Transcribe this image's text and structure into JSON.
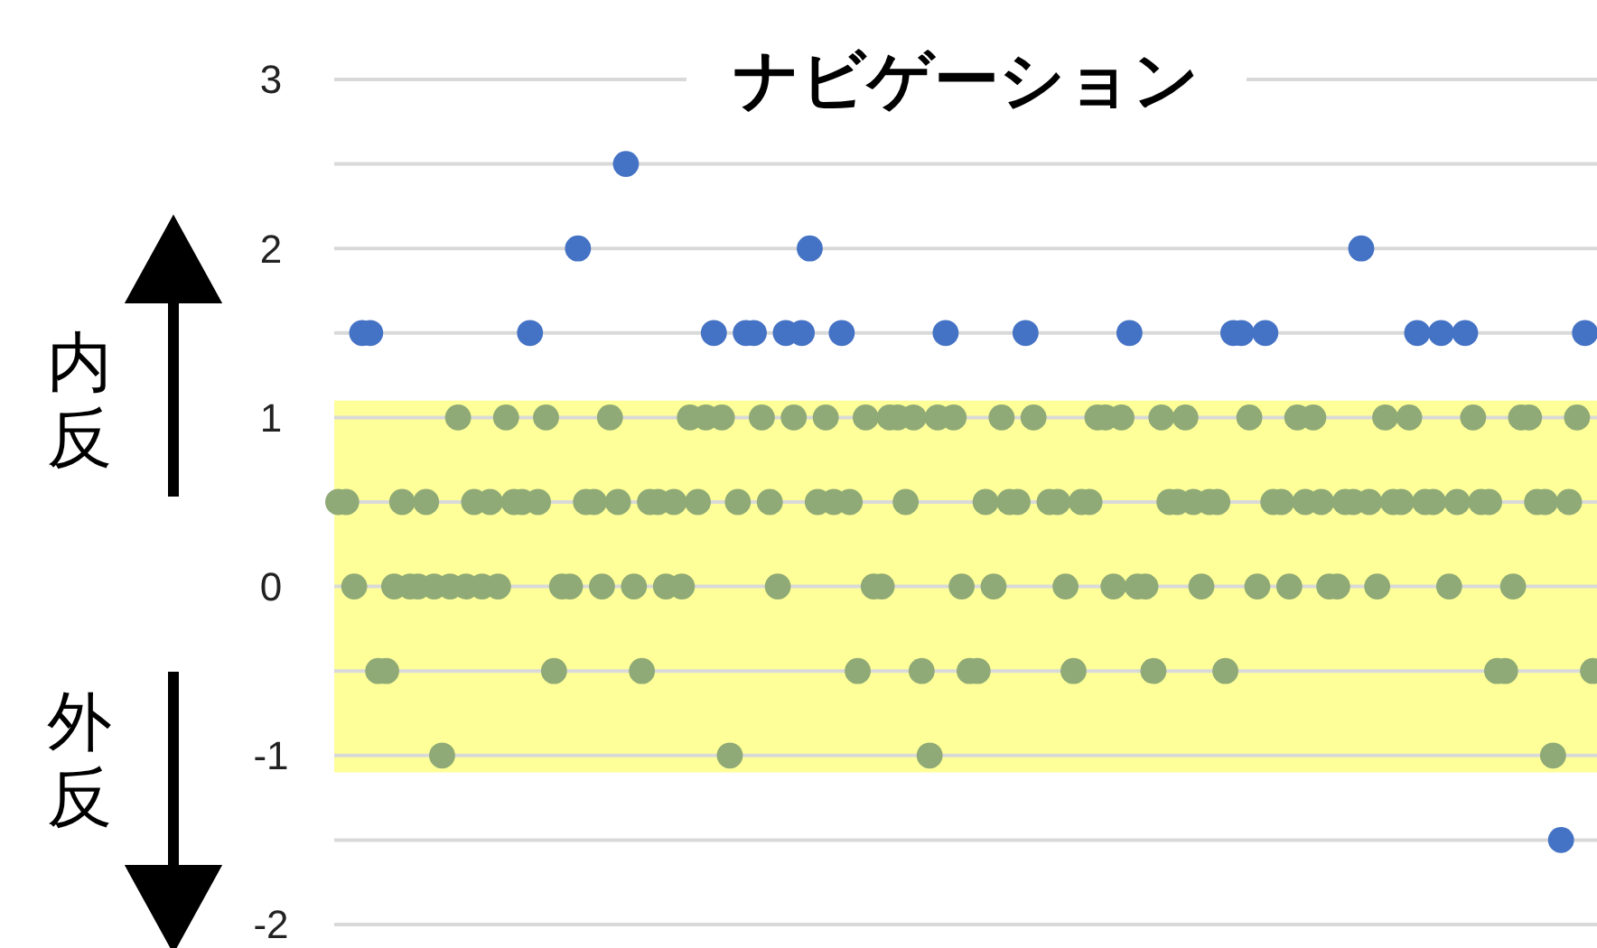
{
  "chart_data": {
    "type": "scatter",
    "title": "ナビゲーション",
    "annotations": [
      "内反",
      "外反"
    ],
    "categories": [
      null,
      null,
      null,
      null,
      null,
      null,
      null,
      null,
      null,
      null,
      null,
      null,
      null,
      null,
      null,
      null,
      null,
      null,
      null,
      null,
      null,
      null,
      null,
      null,
      null,
      null,
      null,
      null,
      null,
      null,
      null,
      null,
      null,
      null,
      null,
      null,
      null,
      null,
      null,
      null,
      null,
      null,
      null,
      null,
      null,
      null,
      null,
      null,
      null,
      null,
      null,
      null,
      null,
      null,
      null,
      null,
      null,
      null,
      null,
      null,
      null,
      null,
      null,
      null,
      null,
      null,
      null,
      null,
      null,
      null,
      null,
      null,
      null,
      null,
      null,
      null,
      null,
      null,
      null,
      null,
      null,
      null,
      null,
      null,
      null,
      null,
      null,
      null,
      null,
      null,
      null,
      null,
      null,
      null,
      null,
      null,
      null,
      null,
      null,
      null,
      null,
      null,
      null,
      null,
      null,
      null,
      null,
      null,
      null,
      null,
      null,
      null,
      null,
      null,
      null,
      null,
      null,
      null,
      null,
      null,
      null,
      null,
      null,
      null,
      null,
      null,
      null,
      null,
      null,
      null,
      null,
      null,
      null,
      null,
      null,
      null,
      null,
      null,
      null,
      null,
      null,
      null,
      null,
      null,
      null,
      null,
      null,
      null,
      null,
      null,
      null,
      null,
      null,
      null,
      null,
      null,
      null,
      null
    ],
    "ylim": [
      -2,
      3
    ],
    "yticks": [
      -2,
      {
        "value": -1.5,
        "label": null
      },
      -1,
      {
        "value": -0.5,
        "label": null
      },
      0,
      {
        "value": 0.5,
        "label": null
      },
      1,
      {
        "value": 1.5,
        "label": null
      },
      2,
      {
        "value": 2.5,
        "label": null
      },
      3
    ],
    "grid": "y",
    "marker": "circle",
    "bands": [
      {
        "axis": "y",
        "from": -1.1,
        "to": 1.1,
        "color": "#ffff99"
      }
    ],
    "series": [
      {
        "color": "#4472c4",
        "values": [
          null,
          null,
          null,
          1.5,
          1.5,
          null,
          null,
          null,
          null,
          null,
          null,
          null,
          null,
          null,
          null,
          null,
          null,
          null,
          null,
          null,
          null,
          null,
          null,
          null,
          1.5,
          null,
          null,
          null,
          null,
          null,
          2,
          null,
          null,
          null,
          null,
          null,
          2.5,
          null,
          null,
          null,
          null,
          null,
          null,
          null,
          null,
          null,
          null,
          1.5,
          null,
          null,
          null,
          1.5,
          1.5,
          null,
          null,
          null,
          1.5,
          null,
          1.5,
          2,
          null,
          null,
          null,
          1.5,
          null,
          null,
          null,
          null,
          null,
          null,
          null,
          null,
          null,
          null,
          null,
          null,
          1.5,
          null,
          null,
          null,
          null,
          null,
          null,
          null,
          null,
          null,
          1.5,
          null,
          null,
          null,
          null,
          null,
          null,
          null,
          null,
          null,
          null,
          null,
          null,
          1.5,
          null,
          null,
          null,
          null,
          null,
          null,
          null,
          null,
          null,
          null,
          null,
          null,
          1.5,
          1.5,
          null,
          null,
          1.5,
          null,
          null,
          null,
          null,
          null,
          null,
          null,
          null,
          null,
          null,
          null,
          2,
          null,
          null,
          null,
          null,
          null,
          null,
          1.5,
          null,
          null,
          1.5,
          null,
          null,
          1.5,
          null,
          null,
          null,
          null,
          null,
          null,
          null,
          null,
          null,
          null,
          null,
          -1.5,
          null,
          null,
          1.5,
          null
        ]
      },
      {
        "color": "#8faa76",
        "values": [
          0.5,
          0.5,
          0,
          null,
          null,
          -0.5,
          -0.5,
          0,
          0.5,
          0,
          0,
          0.5,
          0,
          -1,
          0,
          1,
          0,
          0.5,
          0,
          0.5,
          0,
          1,
          0.5,
          0.5,
          null,
          0.5,
          1,
          -0.5,
          0,
          0,
          null,
          0.5,
          0.5,
          0,
          1,
          0.5,
          null,
          0,
          -0.5,
          0.5,
          0.5,
          0,
          0.5,
          0,
          1,
          0.5,
          1,
          null,
          1,
          -1,
          0.5,
          null,
          null,
          1,
          0.5,
          0,
          null,
          1,
          null,
          null,
          0.5,
          1,
          0.5,
          null,
          0.5,
          -0.5,
          1,
          0,
          0,
          1,
          1,
          0.5,
          1,
          -0.5,
          -1,
          1,
          null,
          1,
          0,
          -0.5,
          -0.5,
          0.5,
          0,
          1,
          0.5,
          0.5,
          null,
          1,
          null,
          0.5,
          0.5,
          0,
          -0.5,
          0.5,
          0.5,
          1,
          1,
          0,
          1,
          null,
          0,
          0,
          -0.5,
          1,
          0.5,
          0.5,
          1,
          0.5,
          0,
          0.5,
          0.5,
          -0.5,
          null,
          null,
          1,
          0,
          null,
          0.5,
          0.5,
          0,
          1,
          0.5,
          1,
          0.5,
          0,
          0,
          0.5,
          0.5,
          null,
          0.5,
          0,
          1,
          0.5,
          0.5,
          1,
          null,
          0.5,
          0.5,
          null,
          0,
          0.5,
          null,
          1,
          0.5,
          0.5,
          -0.5,
          -0.5,
          0,
          1,
          1,
          0.5,
          0.5,
          -1,
          null,
          0.5,
          1,
          null,
          -0.5
        ]
      }
    ]
  }
}
